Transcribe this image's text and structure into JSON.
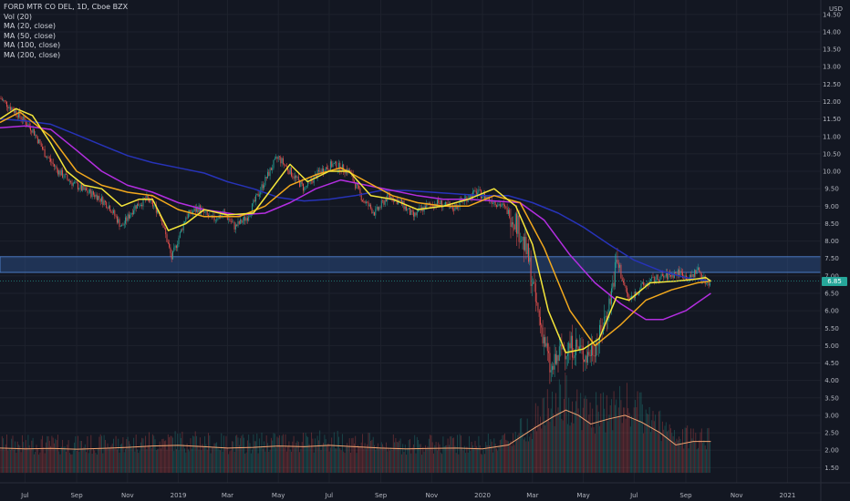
{
  "header": {
    "symbol_line": "FORD MTR CO DEL, 1D, Cboe BZX",
    "indicators": [
      "Vol (20)",
      "MA (20, close)",
      "MA (50, close)",
      "MA (100, close)",
      "MA (200, close)"
    ],
    "currency": "USD"
  },
  "last_price": "6.85",
  "colors": {
    "background": "#131722",
    "grid": "#1e222d",
    "candle_up": "#26a69a",
    "candle_down": "#ef5350",
    "ma20": "#f5e63a",
    "ma50": "#f2a81d",
    "ma100": "#b32ee0",
    "ma200": "#2733b8",
    "volume_ma": "#f2a472",
    "zone_fill": "#2a4a7f",
    "zone_border": "#4b7bc4",
    "price_badge": "#26a69a"
  },
  "chart_data": {
    "type": "candlestick",
    "x_ticks": [
      "Jul",
      "Sep",
      "Nov",
      "2019",
      "Mar",
      "May",
      "Jul",
      "Sep",
      "Nov",
      "2020",
      "Mar",
      "May",
      "Jul",
      "Sep",
      "Nov",
      "2021"
    ],
    "y_ticks": [
      "14.50",
      "14.00",
      "13.50",
      "13.00",
      "12.50",
      "12.00",
      "11.50",
      "11.00",
      "10.50",
      "10.00",
      "9.50",
      "9.00",
      "8.50",
      "8.00",
      "7.50",
      "7.00",
      "6.50",
      "6.00",
      "5.50",
      "5.00",
      "4.50",
      "4.00",
      "3.50",
      "3.00",
      "2.50",
      "2.00",
      "1.50"
    ],
    "ylim": [
      1.3,
      14.6
    ],
    "resistance_zone": [
      7.1,
      7.55
    ],
    "price_path": [
      [
        "2018-06-01",
        12.1
      ],
      [
        "2018-06-20",
        11.7
      ],
      [
        "2018-07-10",
        11.2
      ],
      [
        "2018-07-25",
        10.5
      ],
      [
        "2018-08-10",
        10.0
      ],
      [
        "2018-08-25",
        9.7
      ],
      [
        "2018-09-10",
        9.45
      ],
      [
        "2018-09-25",
        9.3
      ],
      [
        "2018-10-10",
        9.0
      ],
      [
        "2018-10-25",
        8.4
      ],
      [
        "2018-11-10",
        9.0
      ],
      [
        "2018-11-25",
        9.2
      ],
      [
        "2018-12-10",
        8.8
      ],
      [
        "2018-12-24",
        7.5
      ],
      [
        "2019-01-10",
        8.7
      ],
      [
        "2019-01-25",
        8.95
      ],
      [
        "2019-02-10",
        8.6
      ],
      [
        "2019-02-25",
        8.8
      ],
      [
        "2019-03-10",
        8.4
      ],
      [
        "2019-03-25",
        8.7
      ],
      [
        "2019-04-10",
        9.5
      ],
      [
        "2019-04-25",
        10.2
      ],
      [
        "2019-05-01",
        10.4
      ],
      [
        "2019-05-15",
        10.0
      ],
      [
        "2019-06-01",
        9.5
      ],
      [
        "2019-06-20",
        10.0
      ],
      [
        "2019-07-05",
        10.2
      ],
      [
        "2019-07-25",
        10.0
      ],
      [
        "2019-08-10",
        9.2
      ],
      [
        "2019-08-25",
        8.8
      ],
      [
        "2019-09-10",
        9.3
      ],
      [
        "2019-09-25",
        9.1
      ],
      [
        "2019-10-10",
        8.7
      ],
      [
        "2019-10-25",
        9.0
      ],
      [
        "2019-11-10",
        9.1
      ],
      [
        "2019-11-25",
        8.9
      ],
      [
        "2019-12-10",
        9.2
      ],
      [
        "2019-12-25",
        9.4
      ],
      [
        "2020-01-10",
        9.2
      ],
      [
        "2020-01-25",
        9.0
      ],
      [
        "2020-02-10",
        8.6
      ],
      [
        "2020-02-25",
        7.5
      ],
      [
        "2020-03-05",
        6.2
      ],
      [
        "2020-03-15",
        5.2
      ],
      [
        "2020-03-23",
        4.2
      ],
      [
        "2020-04-05",
        4.9
      ],
      [
        "2020-04-20",
        5.0
      ],
      [
        "2020-05-05",
        4.7
      ],
      [
        "2020-05-20",
        5.2
      ],
      [
        "2020-06-01",
        6.2
      ],
      [
        "2020-06-10",
        7.4
      ],
      [
        "2020-06-25",
        6.3
      ],
      [
        "2020-07-10",
        6.7
      ],
      [
        "2020-07-25",
        6.9
      ],
      [
        "2020-08-10",
        7.0
      ],
      [
        "2020-08-25",
        7.1
      ],
      [
        "2020-09-05",
        6.9
      ],
      [
        "2020-09-15",
        7.2
      ],
      [
        "2020-09-25",
        6.8
      ],
      [
        "2020-10-01",
        6.85
      ]
    ],
    "series": [
      {
        "name": "MA (20, close)",
        "points": [
          [
            "2018-06-01",
            11.5
          ],
          [
            "2018-06-20",
            11.8
          ],
          [
            "2018-07-10",
            11.6
          ],
          [
            "2018-08-01",
            10.8
          ],
          [
            "2018-08-20",
            10.0
          ],
          [
            "2018-09-10",
            9.6
          ],
          [
            "2018-10-01",
            9.5
          ],
          [
            "2018-10-25",
            9.0
          ],
          [
            "2018-11-15",
            9.2
          ],
          [
            "2018-12-01",
            9.2
          ],
          [
            "2018-12-20",
            8.3
          ],
          [
            "2019-01-10",
            8.5
          ],
          [
            "2019-02-01",
            8.9
          ],
          [
            "2019-03-01",
            8.75
          ],
          [
            "2019-04-01",
            8.8
          ],
          [
            "2019-04-20",
            9.4
          ],
          [
            "2019-05-15",
            10.2
          ],
          [
            "2019-06-05",
            9.7
          ],
          [
            "2019-07-01",
            10.0
          ],
          [
            "2019-07-25",
            10.0
          ],
          [
            "2019-08-20",
            9.3
          ],
          [
            "2019-09-15",
            9.2
          ],
          [
            "2019-10-15",
            8.9
          ],
          [
            "2019-11-15",
            9.0
          ],
          [
            "2019-12-15",
            9.2
          ],
          [
            "2020-01-15",
            9.5
          ],
          [
            "2020-02-10",
            9.0
          ],
          [
            "2020-03-01",
            7.9
          ],
          [
            "2020-03-20",
            6.0
          ],
          [
            "2020-04-10",
            4.8
          ],
          [
            "2020-05-01",
            4.9
          ],
          [
            "2020-05-20",
            5.2
          ],
          [
            "2020-06-10",
            6.4
          ],
          [
            "2020-06-25",
            6.3
          ],
          [
            "2020-07-20",
            6.8
          ],
          [
            "2020-08-20",
            6.85
          ],
          [
            "2020-09-10",
            6.9
          ],
          [
            "2020-09-25",
            6.95
          ],
          [
            "2020-10-01",
            6.85
          ]
        ]
      },
      {
        "name": "MA (50, close)",
        "points": [
          [
            "2018-06-01",
            11.4
          ],
          [
            "2018-06-25",
            11.7
          ],
          [
            "2018-08-01",
            11.0
          ],
          [
            "2018-09-01",
            10.0
          ],
          [
            "2018-10-01",
            9.6
          ],
          [
            "2018-11-01",
            9.4
          ],
          [
            "2018-12-01",
            9.3
          ],
          [
            "2019-01-01",
            8.9
          ],
          [
            "2019-02-01",
            8.7
          ],
          [
            "2019-03-15",
            8.7
          ],
          [
            "2019-04-15",
            9.0
          ],
          [
            "2019-05-15",
            9.6
          ],
          [
            "2019-06-15",
            9.9
          ],
          [
            "2019-07-15",
            10.1
          ],
          [
            "2019-08-15",
            9.7
          ],
          [
            "2019-09-15",
            9.3
          ],
          [
            "2019-10-15",
            9.1
          ],
          [
            "2019-11-15",
            9.0
          ],
          [
            "2019-12-15",
            9.0
          ],
          [
            "2020-01-15",
            9.3
          ],
          [
            "2020-02-15",
            9.1
          ],
          [
            "2020-03-15",
            7.8
          ],
          [
            "2020-04-15",
            6.0
          ],
          [
            "2020-05-15",
            5.0
          ],
          [
            "2020-06-15",
            5.6
          ],
          [
            "2020-07-15",
            6.3
          ],
          [
            "2020-08-15",
            6.6
          ],
          [
            "2020-09-15",
            6.8
          ],
          [
            "2020-10-01",
            6.85
          ]
        ]
      },
      {
        "name": "MA (100, close)",
        "points": [
          [
            "2018-06-01",
            11.25
          ],
          [
            "2018-07-01",
            11.3
          ],
          [
            "2018-08-01",
            11.2
          ],
          [
            "2018-09-01",
            10.6
          ],
          [
            "2018-10-01",
            10.0
          ],
          [
            "2018-11-01",
            9.6
          ],
          [
            "2018-12-01",
            9.4
          ],
          [
            "2019-01-01",
            9.1
          ],
          [
            "2019-02-01",
            8.9
          ],
          [
            "2019-03-15",
            8.75
          ],
          [
            "2019-04-15",
            8.8
          ],
          [
            "2019-05-15",
            9.1
          ],
          [
            "2019-06-15",
            9.5
          ],
          [
            "2019-07-15",
            9.75
          ],
          [
            "2019-08-15",
            9.6
          ],
          [
            "2019-09-15",
            9.45
          ],
          [
            "2019-10-15",
            9.3
          ],
          [
            "2019-11-15",
            9.2
          ],
          [
            "2019-12-15",
            9.2
          ],
          [
            "2020-01-15",
            9.15
          ],
          [
            "2020-02-15",
            9.1
          ],
          [
            "2020-03-15",
            8.6
          ],
          [
            "2020-04-15",
            7.6
          ],
          [
            "2020-05-15",
            6.8
          ],
          [
            "2020-06-15",
            6.2
          ],
          [
            "2020-07-15",
            5.75
          ],
          [
            "2020-08-05",
            5.75
          ],
          [
            "2020-09-01",
            6.0
          ],
          [
            "2020-10-01",
            6.5
          ]
        ]
      },
      {
        "name": "MA (200, close)",
        "points": [
          [
            "2018-06-01",
            11.5
          ],
          [
            "2018-07-01",
            11.45
          ],
          [
            "2018-08-01",
            11.35
          ],
          [
            "2018-09-01",
            11.05
          ],
          [
            "2018-10-01",
            10.75
          ],
          [
            "2018-11-01",
            10.45
          ],
          [
            "2018-12-01",
            10.25
          ],
          [
            "2019-01-01",
            10.1
          ],
          [
            "2019-02-01",
            9.95
          ],
          [
            "2019-03-01",
            9.7
          ],
          [
            "2019-04-01",
            9.5
          ],
          [
            "2019-05-01",
            9.25
          ],
          [
            "2019-06-01",
            9.15
          ],
          [
            "2019-07-01",
            9.2
          ],
          [
            "2019-08-01",
            9.3
          ],
          [
            "2019-09-01",
            9.45
          ],
          [
            "2019-10-01",
            9.45
          ],
          [
            "2019-11-01",
            9.4
          ],
          [
            "2019-12-01",
            9.35
          ],
          [
            "2020-01-01",
            9.3
          ],
          [
            "2020-02-01",
            9.3
          ],
          [
            "2020-03-01",
            9.1
          ],
          [
            "2020-04-01",
            8.8
          ],
          [
            "2020-05-01",
            8.4
          ],
          [
            "2020-06-01",
            7.9
          ],
          [
            "2020-07-01",
            7.45
          ],
          [
            "2020-08-01",
            7.15
          ],
          [
            "2020-09-01",
            6.95
          ],
          [
            "2020-10-01",
            6.85
          ]
        ]
      }
    ],
    "volume_ma": [
      [
        "2018-06-01",
        2.06
      ],
      [
        "2018-07-01",
        2.04
      ],
      [
        "2018-08-01",
        2.05
      ],
      [
        "2018-09-01",
        2.03
      ],
      [
        "2018-10-01",
        2.05
      ],
      [
        "2018-11-01",
        2.08
      ],
      [
        "2018-12-01",
        2.12
      ],
      [
        "2019-01-01",
        2.14
      ],
      [
        "2019-02-01",
        2.1
      ],
      [
        "2019-03-01",
        2.06
      ],
      [
        "2019-04-01",
        2.08
      ],
      [
        "2019-05-01",
        2.12
      ],
      [
        "2019-06-01",
        2.1
      ],
      [
        "2019-07-01",
        2.14
      ],
      [
        "2019-08-01",
        2.1
      ],
      [
        "2019-09-01",
        2.06
      ],
      [
        "2019-10-01",
        2.04
      ],
      [
        "2019-11-01",
        2.05
      ],
      [
        "2019-12-01",
        2.06
      ],
      [
        "2020-01-01",
        2.04
      ],
      [
        "2020-02-01",
        2.15
      ],
      [
        "2020-03-01",
        2.6
      ],
      [
        "2020-03-25",
        2.95
      ],
      [
        "2020-04-10",
        3.15
      ],
      [
        "2020-04-25",
        3.0
      ],
      [
        "2020-05-10",
        2.75
      ],
      [
        "2020-06-01",
        2.9
      ],
      [
        "2020-06-20",
        3.0
      ],
      [
        "2020-07-10",
        2.8
      ],
      [
        "2020-08-01",
        2.5
      ],
      [
        "2020-08-20",
        2.15
      ],
      [
        "2020-09-10",
        2.25
      ],
      [
        "2020-10-01",
        2.25
      ]
    ]
  }
}
